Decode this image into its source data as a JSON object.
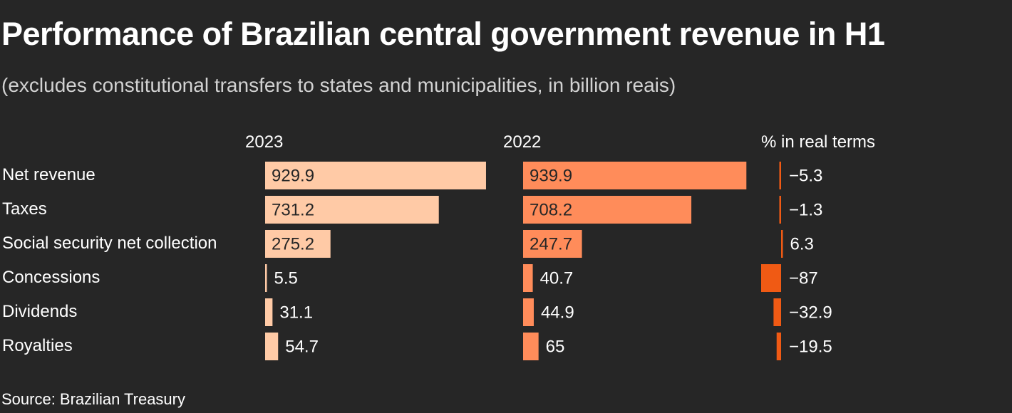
{
  "title": "Performance of Brazilian central government revenue in H1",
  "subtitle": "(excludes constitutional transfers to states and municipalities, in billion reais)",
  "source": "Source: Brazilian Treasury",
  "colors": {
    "background": "#262626",
    "bar_2023": "#ffcaa6",
    "bar_2022": "#ff8c5a",
    "bar_change": "#f05a14",
    "text": "#ffffff",
    "label_on_bar": "#262626"
  },
  "chart_data": {
    "type": "bar",
    "title": "Performance of Brazilian central government revenue in H1",
    "subtitle": "(excludes constitutional transfers to states and municipalities, in billion reais)",
    "categories": [
      "Net revenue",
      "Taxes",
      "Social security net collection",
      "Concessions",
      "Dividends",
      "Royalties"
    ],
    "series": [
      {
        "name": "2023",
        "values": [
          929.9,
          731.2,
          275.2,
          5.5,
          31.1,
          54.7
        ],
        "labels": [
          "929.9",
          "731.2",
          "275.2",
          "5.5",
          "31.1",
          "54.7"
        ]
      },
      {
        "name": "2022",
        "values": [
          939.9,
          708.2,
          247.7,
          40.7,
          44.9,
          65
        ],
        "labels": [
          "939.9",
          "708.2",
          "247.7",
          "40.7",
          "44.9",
          "65"
        ]
      },
      {
        "name": "% in real terms",
        "values": [
          -5.3,
          -1.3,
          6.3,
          -87,
          -32.9,
          -19.5
        ],
        "labels": [
          "−5.3",
          "−1.3",
          "6.3",
          "−87",
          "−32.9",
          "−19.5"
        ]
      }
    ],
    "xlim_bars": [
      0,
      940
    ],
    "xlim_change": [
      -87,
      6.3
    ],
    "grid": false,
    "legend": "column headers"
  }
}
